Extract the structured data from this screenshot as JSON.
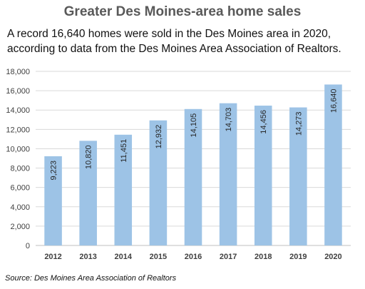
{
  "title": "Greater Des Moines-area home sales",
  "subtitle": "A record 16,640 homes were sold in the Des Moines area in 2020, according to data from the Des Moines Area Association of Realtors.",
  "source": "Source: Des Moines Area Association of Realtors",
  "chart_data": {
    "type": "bar",
    "title": "Greater Des Moines-area home sales",
    "xlabel": "",
    "ylabel": "",
    "categories": [
      "2012",
      "2013",
      "2014",
      "2015",
      "2016",
      "2017",
      "2018",
      "2019",
      "2020"
    ],
    "values": [
      9223,
      10820,
      11451,
      12932,
      14105,
      14703,
      14456,
      14273,
      16640
    ],
    "value_labels": [
      "9,223",
      "10,820",
      "11,451",
      "12,932",
      "14,105",
      "14,703",
      "14,456",
      "14,273",
      "16,640"
    ],
    "yticks": [
      "0",
      "2,000",
      "4,000",
      "6,000",
      "8,000",
      "10,000",
      "12,000",
      "14,000",
      "16,000",
      "18,000"
    ],
    "ylim": [
      0,
      18000
    ],
    "grid": true,
    "bar_color": "#9dc3e6",
    "grid_color": "#d9d9d9"
  }
}
